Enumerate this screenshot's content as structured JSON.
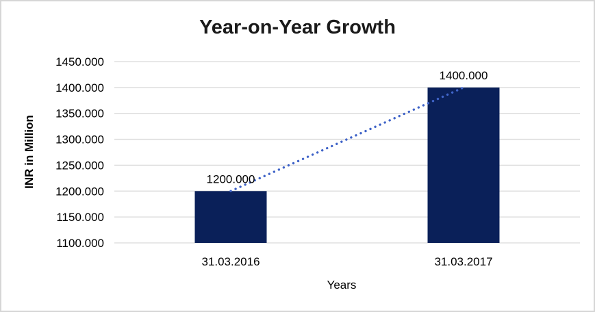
{
  "chart_data": {
    "type": "bar",
    "title": "Year-on-Year Growth",
    "xlabel": "Years",
    "ylabel": "INR in Million",
    "categories": [
      "31.03.2016",
      "31.03.2017"
    ],
    "values": [
      1200,
      1400
    ],
    "bar_value_labels": [
      "1200.000",
      "1400.000"
    ],
    "ylim": [
      1100,
      1450
    ],
    "y_tick_step": 50,
    "y_tick_values": [
      1100,
      1150,
      1200,
      1250,
      1300,
      1350,
      1400,
      1450
    ],
    "y_tick_labels": [
      "1100.000",
      "1150.000",
      "1200.000",
      "1250.000",
      "1300.000",
      "1350.000",
      "1400.000",
      "1450.000"
    ],
    "grid": true,
    "legend": "none",
    "trendline": {
      "type": "linear",
      "style": "dotted",
      "start_value": 1200,
      "end_value": 1400
    },
    "colors": {
      "bar": "#0a2059",
      "trendline": "#4064c8",
      "gridline": "#d9d9d9",
      "title_text": "#1a1a1a",
      "axis_text": "#000000",
      "background": "#ffffff",
      "frame_border": "#d6d6d6"
    }
  }
}
